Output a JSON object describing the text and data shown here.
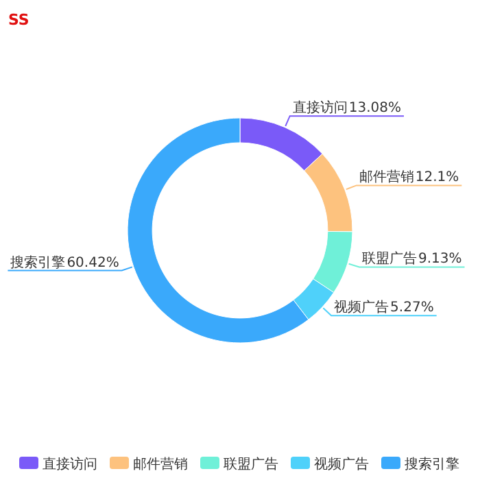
{
  "chart_data": {
    "type": "donut",
    "title": "SS",
    "categories": [
      "直接访问",
      "邮件营销",
      "联盟广告",
      "视频广告",
      "搜索引擎"
    ],
    "values": [
      13.08,
      12.1,
      9.13,
      5.27,
      60.42
    ],
    "colors": [
      "#7a5af8",
      "#fdc27e",
      "#6ff0d8",
      "#4fd1fa",
      "#3aa9fb"
    ],
    "value_labels": [
      "13.08%",
      "12.1%",
      "9.13%",
      "5.27%",
      "60.42%"
    ],
    "legend": "bottom"
  }
}
